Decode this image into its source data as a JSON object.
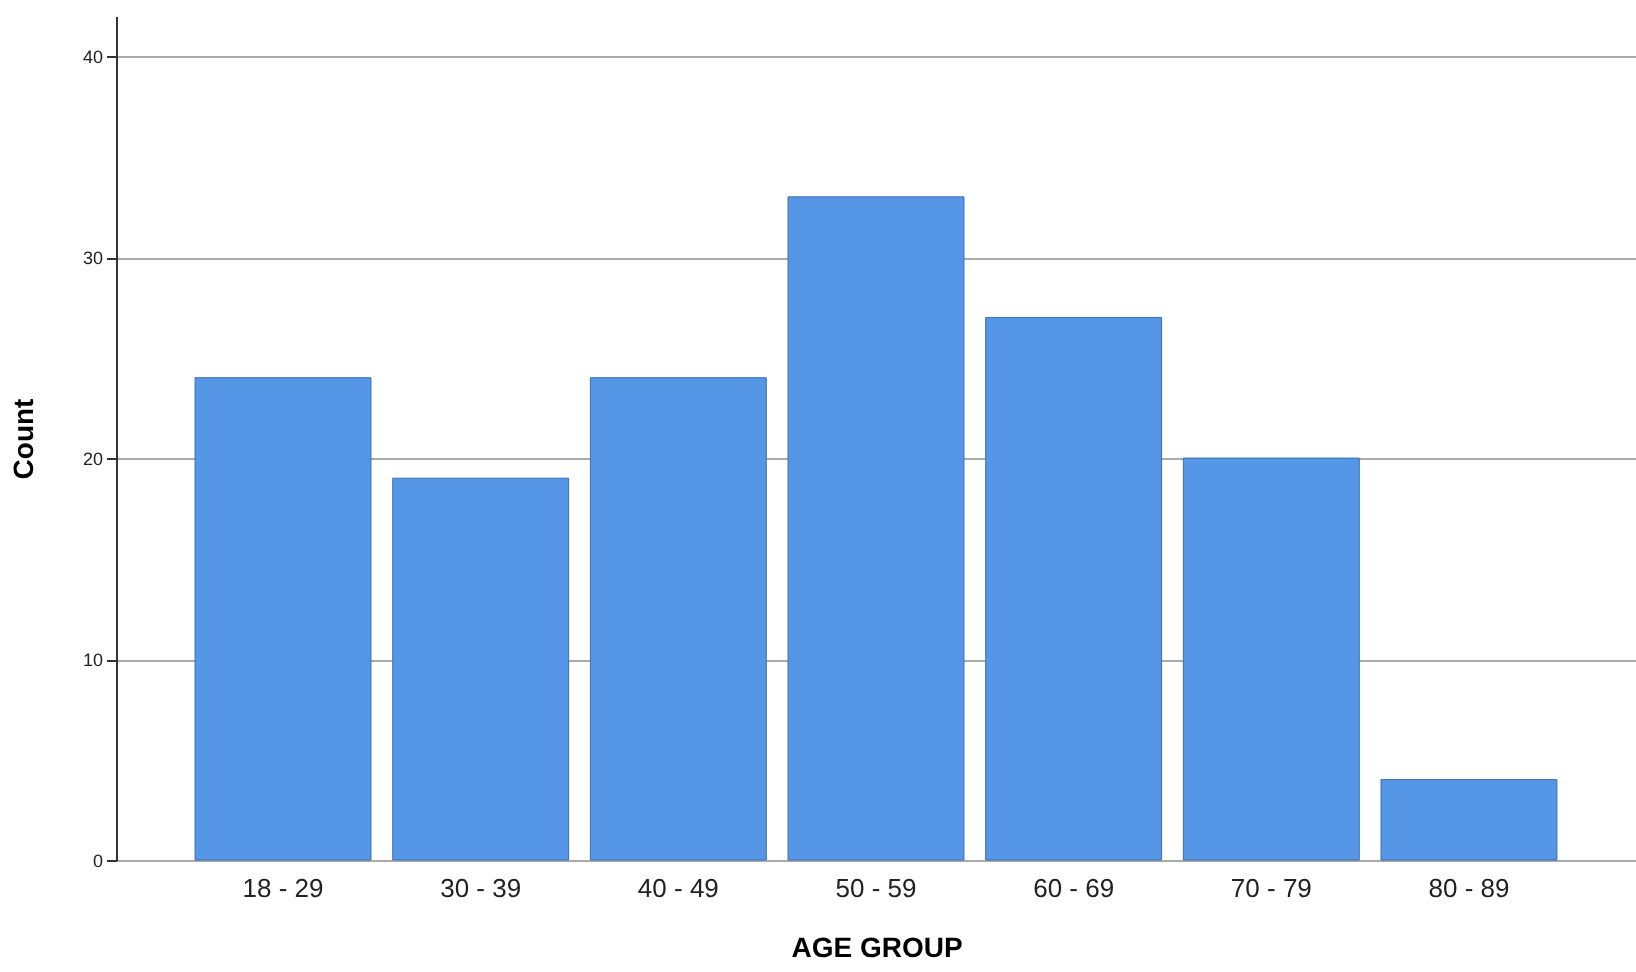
{
  "chart_data": {
    "type": "bar",
    "xlabel": "AGE GROUP",
    "ylabel": "Count",
    "categories": [
      "18 - 29",
      "30 - 39",
      "40 - 49",
      "50 - 59",
      "60 - 69",
      "70 - 79",
      "80 - 89"
    ],
    "values": [
      24,
      19,
      24,
      33,
      27,
      20,
      4
    ],
    "color": "#5596e6",
    "ylim": [
      0,
      42
    ],
    "yticks": [
      0,
      10,
      20,
      30,
      40
    ],
    "grid": "y"
  }
}
